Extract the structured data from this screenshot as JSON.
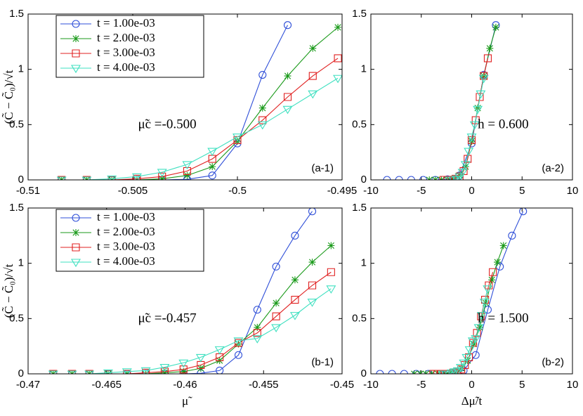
{
  "chart_data": [
    {
      "type": "line",
      "ylabel": "(C̃ − C̃₀)/√t",
      "xlim": [
        -0.51,
        -0.495
      ],
      "xticks": [
        -0.51,
        -0.505,
        -0.5,
        -0.495
      ],
      "ylim": [
        0,
        1.5
      ],
      "yticks": [
        0,
        0.5,
        1,
        1.5
      ],
      "legend": "upper left",
      "annotations": [
        "μ̃c =-0.500",
        "(a-1)"
      ],
      "series": [
        {
          "name": "t = 1.00e-03",
          "color": "#2f4fd8",
          "marker": "circle",
          "x": [
            -0.5084,
            -0.5072,
            -0.506,
            -0.5048,
            -0.5036,
            -0.5024,
            -0.5012,
            -0.5,
            -0.4988,
            -0.4976
          ],
          "values": [
            0,
            0,
            0,
            0,
            0,
            0.005,
            0.04,
            0.33,
            0.95,
            1.4
          ]
        },
        {
          "name": "t = 2.00e-03",
          "color": "#1a9a1a",
          "marker": "star",
          "x": [
            -0.5084,
            -0.5072,
            -0.506,
            -0.5048,
            -0.5036,
            -0.5024,
            -0.5012,
            -0.5,
            -0.4988,
            -0.4976,
            -0.4964,
            -0.4952
          ],
          "values": [
            0,
            0,
            0,
            0,
            0.01,
            0.04,
            0.12,
            0.35,
            0.65,
            0.94,
            1.19,
            1.38
          ]
        },
        {
          "name": "t = 3.00e-03",
          "color": "#e02020",
          "marker": "square",
          "x": [
            -0.5084,
            -0.5072,
            -0.506,
            -0.5048,
            -0.5036,
            -0.5024,
            -0.5012,
            -0.5,
            -0.4988,
            -0.4976,
            -0.4964,
            -0.4952
          ],
          "values": [
            0,
            0,
            0,
            0.01,
            0.03,
            0.08,
            0.19,
            0.36,
            0.54,
            0.75,
            0.94,
            1.1
          ]
        },
        {
          "name": "t = 4.00e-03",
          "color": "#3fe0c0",
          "marker": "triangle",
          "x": [
            -0.5084,
            -0.5072,
            -0.506,
            -0.5048,
            -0.5036,
            -0.5024,
            -0.5012,
            -0.5,
            -0.4988,
            -0.4976,
            -0.4964,
            -0.4952
          ],
          "values": [
            0,
            0,
            0.01,
            0.03,
            0.07,
            0.14,
            0.26,
            0.39,
            0.5,
            0.64,
            0.78,
            0.92
          ]
        }
      ]
    },
    {
      "type": "line",
      "xlim": [
        -10,
        10
      ],
      "xticks": [
        -10,
        -5,
        0,
        5,
        10
      ],
      "ylim": [
        0,
        1.5
      ],
      "yticks": [
        0,
        0.5,
        1,
        1.5
      ],
      "annotations": [
        "h = 0.600",
        "(a-2)"
      ],
      "series": [
        {
          "color": "#2f4fd8",
          "marker": "circle",
          "x": [
            -8.4,
            -7.2,
            -6,
            -4.8,
            -3.6,
            -2.4,
            -1.2,
            0,
            1.2,
            2.4
          ],
          "values": [
            0,
            0,
            0,
            0,
            0,
            0.005,
            0.04,
            0.33,
            0.95,
            1.4
          ]
        },
        {
          "color": "#1a9a1a",
          "marker": "star",
          "x": [
            -4.2,
            -3.6,
            -3,
            -2.4,
            -1.8,
            -1.2,
            -0.6,
            0,
            0.6,
            1.2,
            1.8,
            2.4
          ],
          "values": [
            0,
            0,
            0,
            0,
            0.01,
            0.04,
            0.12,
            0.35,
            0.65,
            0.94,
            1.19,
            1.38
          ]
        },
        {
          "color": "#e02020",
          "marker": "square",
          "x": [
            -2.8,
            -2.4,
            -2,
            -1.6,
            -1.2,
            -0.8,
            -0.4,
            0,
            0.4,
            0.8,
            1.2,
            1.6
          ],
          "values": [
            0,
            0,
            0,
            0.01,
            0.03,
            0.08,
            0.19,
            0.36,
            0.54,
            0.75,
            0.94,
            1.1
          ]
        },
        {
          "color": "#3fe0c0",
          "marker": "triangle",
          "x": [
            -2.1,
            -1.8,
            -1.5,
            -1.2,
            -0.9,
            -0.6,
            -0.3,
            0,
            0.3,
            0.6,
            0.9,
            1.2
          ],
          "values": [
            0,
            0,
            0.01,
            0.03,
            0.07,
            0.14,
            0.26,
            0.39,
            0.5,
            0.64,
            0.78,
            0.92
          ]
        }
      ]
    },
    {
      "type": "line",
      "xlabel": "μ̃",
      "ylabel": "(C̃ − C̃₀)/√t",
      "xlim": [
        -0.47,
        -0.45
      ],
      "xticks": [
        -0.47,
        -0.465,
        -0.46,
        -0.455,
        -0.45
      ],
      "ylim": [
        0,
        1.5
      ],
      "yticks": [
        0,
        0.5,
        1,
        1.5
      ],
      "legend": "upper left",
      "annotations": [
        "μ̃c =-0.457",
        "(b-1)"
      ],
      "series": [
        {
          "name": "t = 1.00e-03",
          "color": "#2f4fd8",
          "marker": "circle",
          "x": [
            -0.4684,
            -0.4672,
            -0.4661,
            -0.4649,
            -0.4637,
            -0.4625,
            -0.4613,
            -0.4601,
            -0.459,
            -0.4578,
            -0.4566,
            -0.4554,
            -0.4542,
            -0.453,
            -0.4519
          ],
          "values": [
            0,
            0,
            0,
            0,
            0,
            0,
            0,
            0,
            0.005,
            0.03,
            0.17,
            0.58,
            0.97,
            1.25,
            1.47
          ]
        },
        {
          "name": "t = 2.00e-03",
          "color": "#1a9a1a",
          "marker": "star",
          "x": [
            -0.4684,
            -0.4672,
            -0.4661,
            -0.4649,
            -0.4637,
            -0.4625,
            -0.4613,
            -0.4601,
            -0.459,
            -0.4578,
            -0.4566,
            -0.4554,
            -0.4542,
            -0.453,
            -0.4519,
            -0.4507
          ],
          "values": [
            0,
            0,
            0,
            0,
            0,
            0,
            0.01,
            0.02,
            0.05,
            0.12,
            0.27,
            0.42,
            0.64,
            0.85,
            1.01,
            1.16
          ]
        },
        {
          "name": "t = 3.00e-03",
          "color": "#e02020",
          "marker": "square",
          "x": [
            -0.4684,
            -0.4672,
            -0.4661,
            -0.4649,
            -0.4637,
            -0.4625,
            -0.4613,
            -0.4601,
            -0.459,
            -0.4578,
            -0.4566,
            -0.4554,
            -0.4542,
            -0.453,
            -0.4519,
            -0.4507
          ],
          "values": [
            0,
            0,
            0,
            0,
            0,
            0.01,
            0.02,
            0.04,
            0.08,
            0.15,
            0.28,
            0.37,
            0.52,
            0.67,
            0.8,
            0.92
          ]
        },
        {
          "name": "t = 4.00e-03",
          "color": "#3fe0c0",
          "marker": "triangle",
          "x": [
            -0.4684,
            -0.4672,
            -0.4661,
            -0.4649,
            -0.4637,
            -0.4625,
            -0.4613,
            -0.4601,
            -0.459,
            -0.4578,
            -0.4566,
            -0.4554,
            -0.4542,
            -0.453,
            -0.4519,
            -0.4507
          ],
          "values": [
            0,
            0,
            0,
            0.01,
            0.02,
            0.03,
            0.06,
            0.1,
            0.15,
            0.22,
            0.3,
            0.32,
            0.42,
            0.53,
            0.65,
            0.77
          ]
        }
      ]
    },
    {
      "type": "line",
      "xlabel": "Δμ̃/t",
      "xlim": [
        -10,
        10
      ],
      "xticks": [
        -10,
        -5,
        0,
        5,
        10
      ],
      "ylim": [
        0,
        1.5
      ],
      "yticks": [
        0,
        0.5,
        1,
        1.5
      ],
      "annotations": [
        "h = 1.500",
        "(b-2)"
      ],
      "series": [
        {
          "color": "#2f4fd8",
          "marker": "circle",
          "x": [
            -9.1,
            -7.9,
            -6.7,
            -5.5,
            -4.3,
            -3.1,
            -2,
            -0.8,
            0.4,
            1.6,
            2.8,
            4,
            5.1
          ],
          "values": [
            0,
            0,
            0,
            0,
            0,
            0,
            0.005,
            0.03,
            0.17,
            0.58,
            0.97,
            1.25,
            1.47
          ]
        },
        {
          "color": "#1a9a1a",
          "marker": "star",
          "x": [
            -5.7,
            -5.1,
            -4.55,
            -3.95,
            -3.35,
            -2.75,
            -2.15,
            -1.55,
            -1,
            -0.4,
            0.2,
            0.8,
            1.4,
            2,
            2.55,
            3.15
          ],
          "values": [
            0,
            0,
            0,
            0,
            0,
            0,
            0.01,
            0.02,
            0.05,
            0.12,
            0.27,
            0.42,
            0.64,
            0.85,
            1.01,
            1.16
          ]
        },
        {
          "color": "#e02020",
          "marker": "square",
          "x": [
            -3.8,
            -3.4,
            -3.03,
            -2.63,
            -2.23,
            -1.83,
            -1.43,
            -1.03,
            -0.67,
            -0.27,
            0.13,
            0.53,
            0.93,
            1.33,
            1.7,
            2.1
          ],
          "values": [
            0,
            0,
            0,
            0,
            0,
            0.01,
            0.02,
            0.04,
            0.08,
            0.15,
            0.28,
            0.37,
            0.52,
            0.67,
            0.8,
            0.92
          ]
        },
        {
          "color": "#3fe0c0",
          "marker": "triangle",
          "x": [
            -2.85,
            -2.55,
            -2.28,
            -1.98,
            -1.68,
            -1.38,
            -1.08,
            -0.78,
            -0.5,
            -0.2,
            0.1,
            0.4,
            0.7,
            1,
            1.28,
            1.58
          ],
          "values": [
            0,
            0,
            0,
            0.01,
            0.02,
            0.03,
            0.06,
            0.1,
            0.15,
            0.22,
            0.3,
            0.32,
            0.42,
            0.53,
            0.65,
            0.77
          ]
        }
      ]
    }
  ]
}
